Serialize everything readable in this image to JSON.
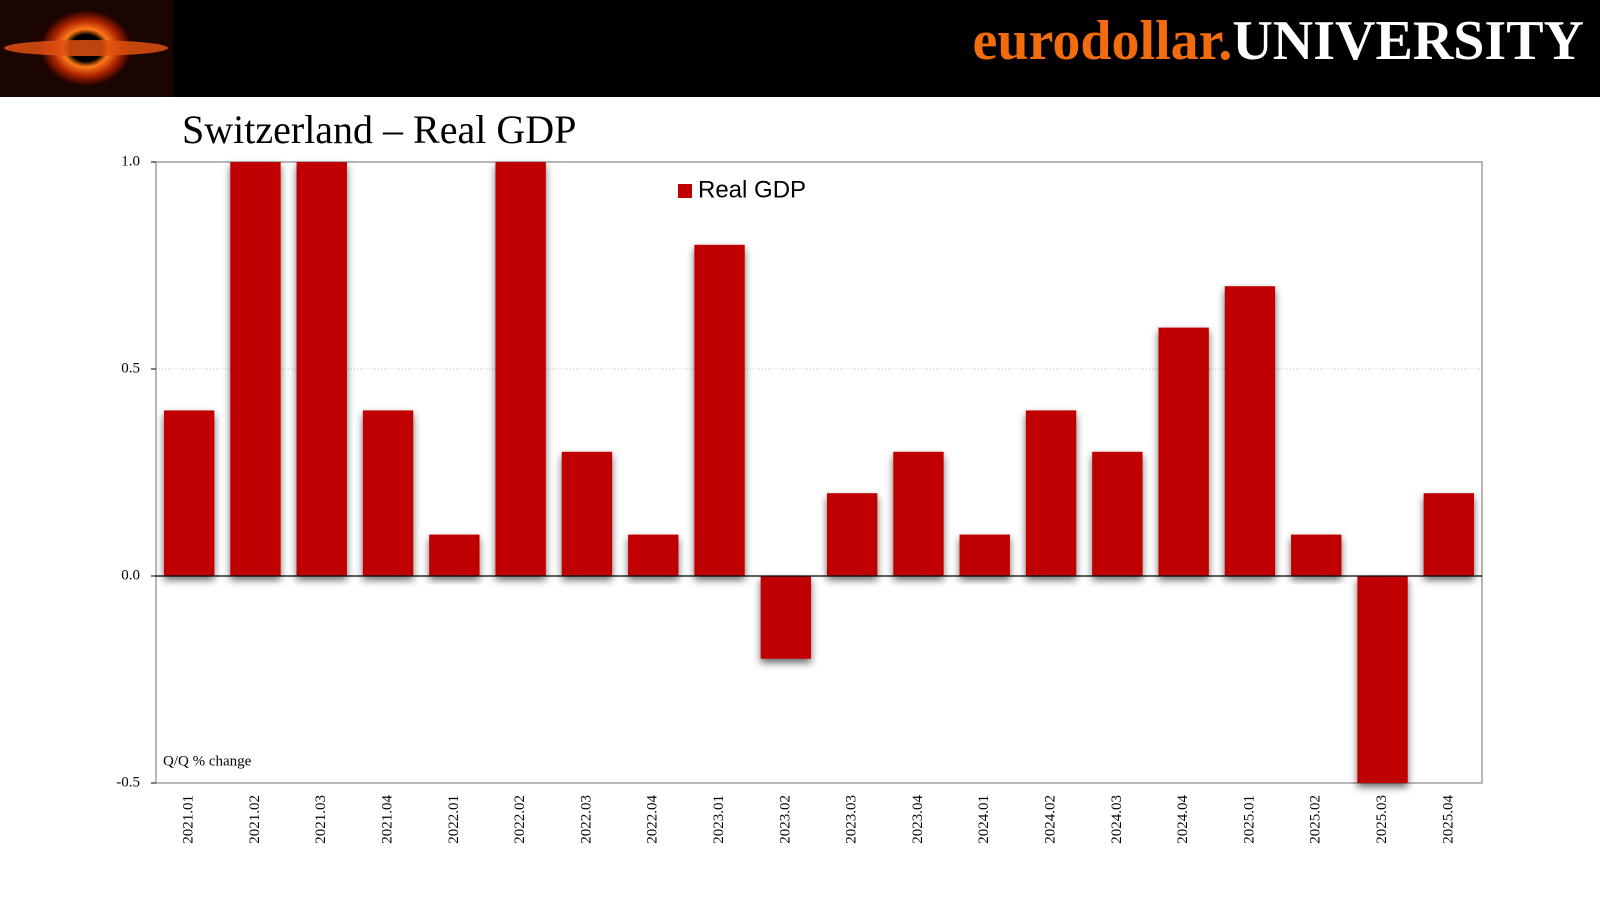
{
  "brand": {
    "first": "eurodollar.",
    "second": "UNIVERSITY"
  },
  "chart_data": {
    "type": "bar",
    "title": "Switzerland – Real GDP",
    "annotation": "Q/Q % change",
    "categories": [
      "2021.01",
      "2021.02",
      "2021.03",
      "2021.04",
      "2022.01",
      "2022.02",
      "2022.03",
      "2022.04",
      "2023.01",
      "2023.02",
      "2023.03",
      "2023.04",
      "2024.01",
      "2024.02",
      "2024.03",
      "2024.04",
      "2025.01",
      "2025.02",
      "2025.03",
      "2025.04"
    ],
    "series": [
      {
        "name": "Real GDP",
        "color": "#c00000",
        "values": [
          0.4,
          1.0,
          1.0,
          0.4,
          0.1,
          1.0,
          0.3,
          0.1,
          0.8,
          -0.2,
          0.2,
          0.3,
          0.1,
          0.4,
          0.3,
          0.6,
          0.7,
          0.1,
          -0.5,
          0.2
        ]
      }
    ],
    "ylim": [
      -0.5,
      1.0
    ],
    "yticks": [
      {
        "value": -0.5,
        "label": "-0.5"
      },
      {
        "value": 0,
        "label": "0.0"
      },
      0.5,
      {
        "value": 1,
        "label": "1.0"
      }
    ],
    "grid": true,
    "legend": "top-center"
  }
}
